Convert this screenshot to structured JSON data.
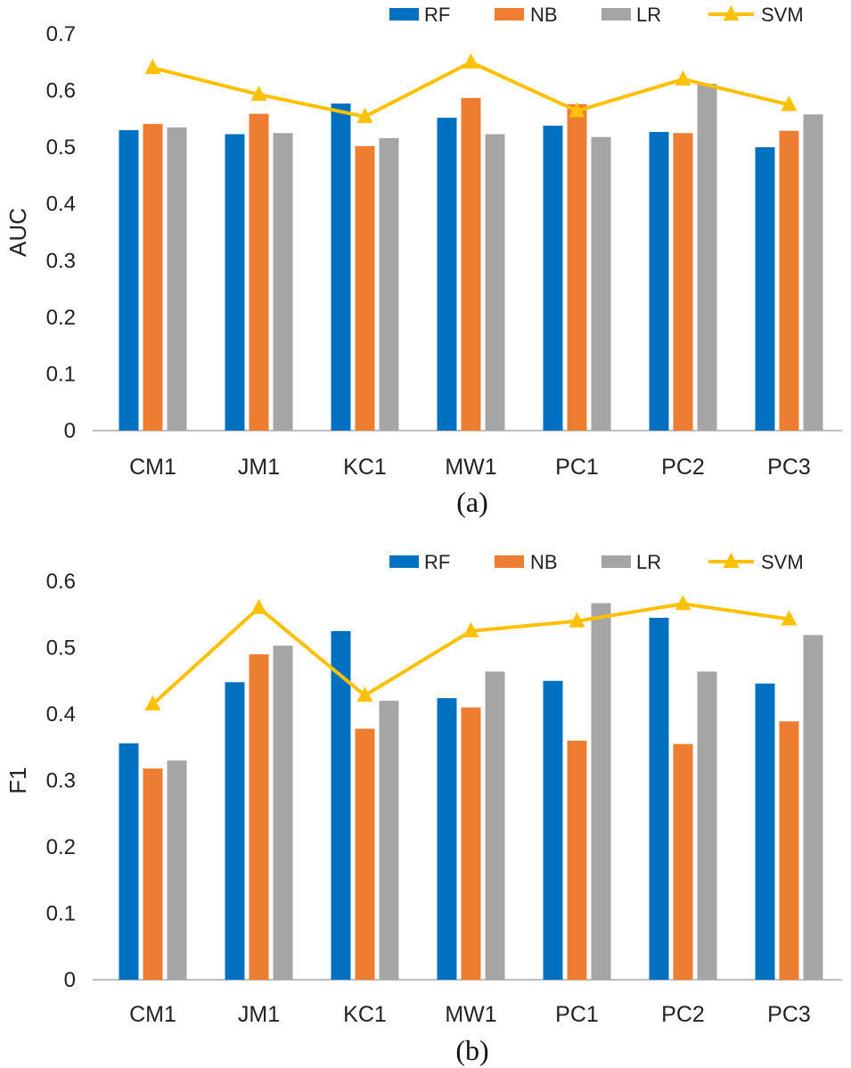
{
  "colors": {
    "RF": "#0070c0",
    "NB": "#ed7d31",
    "LR": "#a5a5a5",
    "SVM": "#ffc000"
  },
  "chart_data": [
    {
      "type": "bar",
      "panel_label": "(a)",
      "title": "",
      "xlabel": "",
      "ylabel": "AUC",
      "ylim": [
        0,
        0.7
      ],
      "yticks": [
        "0",
        "0.1",
        "0.2",
        "0.3",
        "0.4",
        "0.5",
        "0.6",
        "0.7"
      ],
      "yticks_values": [
        0,
        0.1,
        0.2,
        0.3,
        0.4,
        0.5,
        0.6,
        0.7
      ],
      "categories": [
        "CM1",
        "JM1",
        "KC1",
        "MW1",
        "PC1",
        "PC2",
        "PC3"
      ],
      "legend": [
        "RF",
        "NB",
        "LR",
        "SVM"
      ],
      "legend_position": "top-right",
      "series": [
        {
          "name": "RF",
          "kind": "bar",
          "values": [
            0.53,
            0.523,
            0.577,
            0.552,
            0.538,
            0.527,
            0.5
          ]
        },
        {
          "name": "NB",
          "kind": "bar",
          "values": [
            0.541,
            0.559,
            0.502,
            0.587,
            0.576,
            0.525,
            0.529
          ]
        },
        {
          "name": "LR",
          "kind": "bar",
          "values": [
            0.535,
            0.525,
            0.516,
            0.523,
            0.518,
            0.612,
            0.558
          ]
        },
        {
          "name": "SVM",
          "kind": "line",
          "values": [
            0.64,
            0.593,
            0.554,
            0.65,
            0.564,
            0.62,
            0.575
          ]
        }
      ]
    },
    {
      "type": "bar",
      "panel_label": "(b)",
      "title": "",
      "xlabel": "",
      "ylabel": "F1",
      "ylim": [
        0,
        0.6
      ],
      "yticks": [
        "0",
        "0.1",
        "0.2",
        "0.3",
        "0.4",
        "0.5",
        "0.6"
      ],
      "yticks_values": [
        0,
        0.1,
        0.2,
        0.3,
        0.4,
        0.5,
        0.6
      ],
      "categories": [
        "CM1",
        "JM1",
        "KC1",
        "MW1",
        "PC1",
        "PC2",
        "PC3"
      ],
      "legend": [
        "RF",
        "NB",
        "LR",
        "SVM"
      ],
      "legend_position": "top-right",
      "series": [
        {
          "name": "RF",
          "kind": "bar",
          "values": [
            0.356,
            0.448,
            0.525,
            0.424,
            0.45,
            0.545,
            0.446
          ]
        },
        {
          "name": "NB",
          "kind": "bar",
          "values": [
            0.318,
            0.49,
            0.378,
            0.41,
            0.36,
            0.355,
            0.389
          ]
        },
        {
          "name": "LR",
          "kind": "bar",
          "values": [
            0.33,
            0.503,
            0.42,
            0.464,
            0.567,
            0.464,
            0.519
          ]
        },
        {
          "name": "SVM",
          "kind": "line",
          "values": [
            0.415,
            0.56,
            0.428,
            0.525,
            0.54,
            0.566,
            0.543
          ]
        }
      ]
    }
  ]
}
